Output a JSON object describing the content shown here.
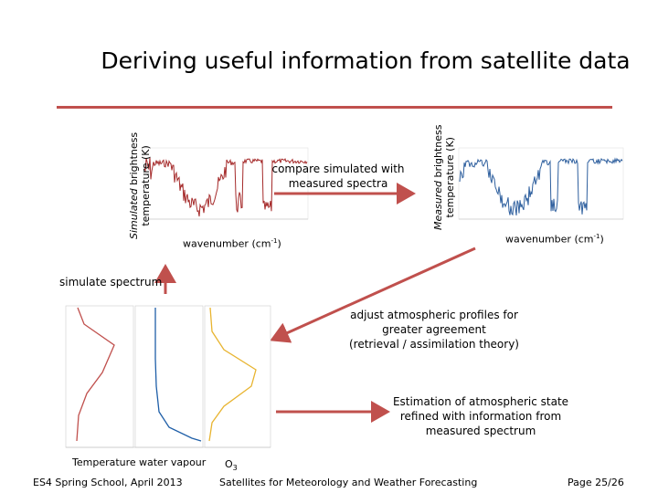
{
  "slide": {
    "title": "Deriving useful information from satellite data",
    "simulated_axis": {
      "emph": "Simulated",
      "rest": " brightness",
      "line2": "temperature (K)"
    },
    "measured_axis": {
      "emph": "Measured",
      "rest": " brightness",
      "line2": "temperature (K)"
    },
    "wavenumber_left": "wavenumber (cm-1)",
    "wavenumber_right": "wavenumber (cm-1)",
    "compare_text": [
      "compare simulated with",
      "measured spectra"
    ],
    "simulate_spectrum": "simulate spectrum",
    "adjust_text": [
      "adjust atmospheric profiles for",
      "greater agreement",
      "(retrieval / assimilation theory)"
    ],
    "estimation_text": [
      "Estimation of atmospheric state",
      "refined with information from",
      "measured spectrum"
    ],
    "profile_labels": {
      "temperature": "Temperature",
      "water_vapour": "water vapour",
      "ozone": "O3"
    },
    "footer": {
      "left": "ES4 Spring School, April 2013",
      "center": "Satellites for Meteorology and Weather Forecasting",
      "right": "Page 25/26"
    },
    "colors": {
      "accent": "#c0504d",
      "simulated": "#a52a2a",
      "measured": "#2e5f9e",
      "temperature": "#c0504d",
      "water_vapour": "#1f5fa8",
      "ozone": "#e8b430"
    }
  }
}
